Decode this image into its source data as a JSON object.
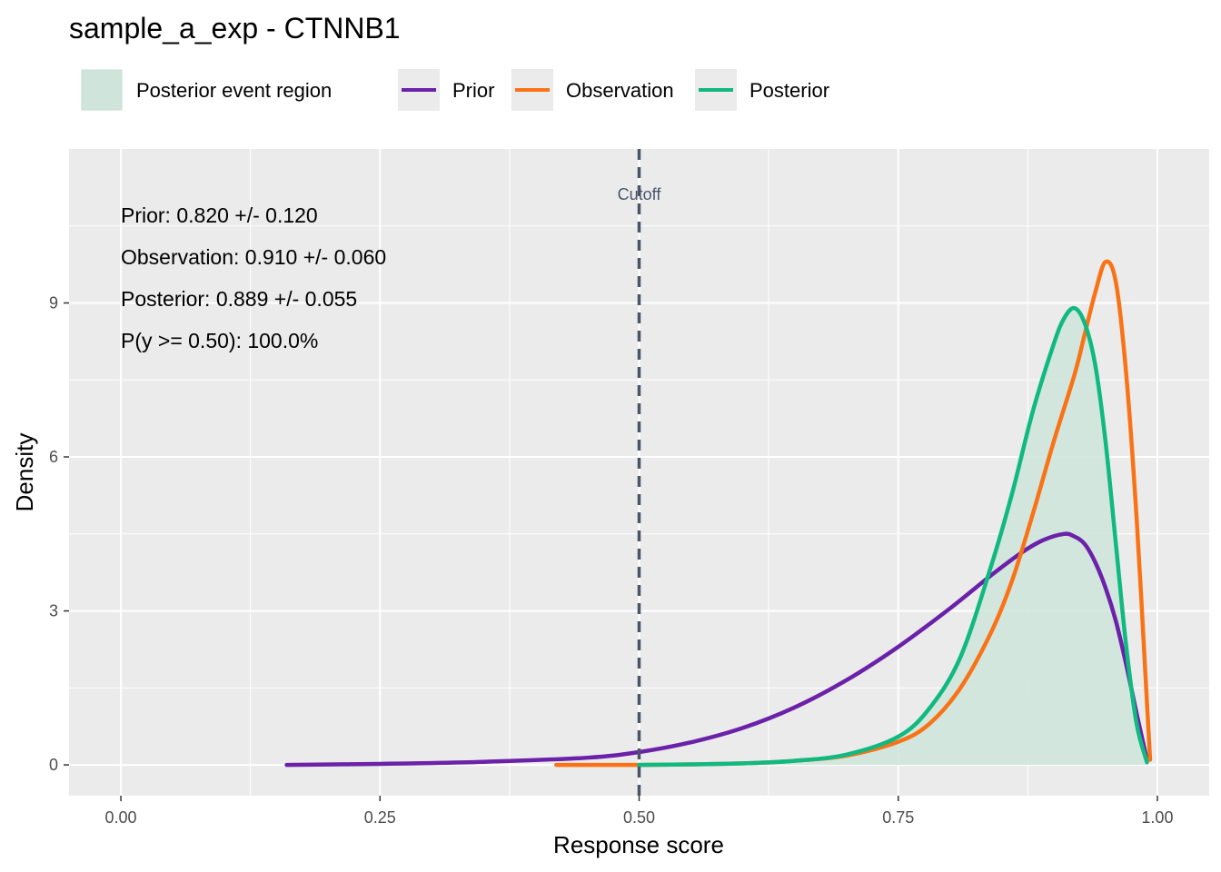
{
  "chart_data": {
    "type": "line",
    "title": "sample_a_exp - CTNNB1",
    "xlabel": "Response score",
    "ylabel": "Density",
    "xlim": [
      -0.05,
      1.05
    ],
    "ylim": [
      -0.6,
      12.0
    ],
    "x_ticks": [
      0,
      0.25,
      0.5,
      0.75,
      1
    ],
    "x_tick_labels": [
      "0.00",
      "0.25",
      "0.50",
      "0.75",
      "1.00"
    ],
    "y_ticks": [
      0,
      3,
      6,
      9
    ],
    "y_tick_labels": [
      "0",
      "3",
      "6",
      "9"
    ],
    "grid": true,
    "legend_position": "top",
    "legend": {
      "fill_label": "Posterior event region",
      "fill_color": "#cfe5dc"
    },
    "series": [
      {
        "name": "Prior",
        "color": "#6b21a8",
        "x": [
          0.16,
          0.25,
          0.35,
          0.45,
          0.5,
          0.55,
          0.6,
          0.65,
          0.7,
          0.75,
          0.8,
          0.84,
          0.87,
          0.89,
          0.91,
          0.92,
          0.93,
          0.94,
          0.95,
          0.96,
          0.97,
          0.98,
          0.99
        ],
        "y": [
          0.0,
          0.02,
          0.06,
          0.14,
          0.25,
          0.44,
          0.72,
          1.12,
          1.65,
          2.3,
          3.05,
          3.7,
          4.15,
          4.38,
          4.5,
          4.45,
          4.3,
          3.95,
          3.45,
          2.8,
          1.95,
          1.0,
          0.1
        ]
      },
      {
        "name": "Observation",
        "color": "#f97316",
        "x": [
          0.42,
          0.5,
          0.55,
          0.6,
          0.65,
          0.7,
          0.75,
          0.78,
          0.81,
          0.84,
          0.86,
          0.88,
          0.9,
          0.92,
          0.93,
          0.94,
          0.95,
          0.96,
          0.97,
          0.98,
          0.99,
          0.993
        ],
        "y": [
          0.0,
          0.0,
          0.01,
          0.03,
          0.08,
          0.18,
          0.45,
          0.8,
          1.5,
          2.6,
          3.6,
          4.9,
          6.3,
          7.6,
          8.4,
          9.2,
          9.8,
          9.4,
          7.6,
          4.8,
          1.2,
          0.1
        ]
      },
      {
        "name": "Posterior",
        "color": "#10b981",
        "x": [
          0.5,
          0.55,
          0.6,
          0.65,
          0.7,
          0.75,
          0.78,
          0.81,
          0.84,
          0.86,
          0.88,
          0.9,
          0.91,
          0.92,
          0.93,
          0.94,
          0.95,
          0.96,
          0.97,
          0.98,
          0.99
        ],
        "y": [
          0.0,
          0.01,
          0.03,
          0.08,
          0.2,
          0.55,
          1.1,
          2.1,
          3.9,
          5.3,
          6.9,
          8.2,
          8.7,
          8.9,
          8.6,
          7.8,
          6.3,
          4.3,
          2.3,
          0.8,
          0.05
        ]
      }
    ],
    "fill_region": {
      "series": "Posterior",
      "x_from": 0.5,
      "x_to": 0.99
    },
    "cutoff": {
      "x": 0.5,
      "label": "Cutoff",
      "color": "#4a5568"
    },
    "annotations": [
      "Prior: 0.820 +/- 0.120",
      "Observation: 0.910 +/- 0.060",
      "Posterior: 0.889 +/- 0.055",
      "P(y >= 0.50): 100.0%"
    ],
    "panel_background": "#ebebeb",
    "grid_color": "#ffffff"
  }
}
